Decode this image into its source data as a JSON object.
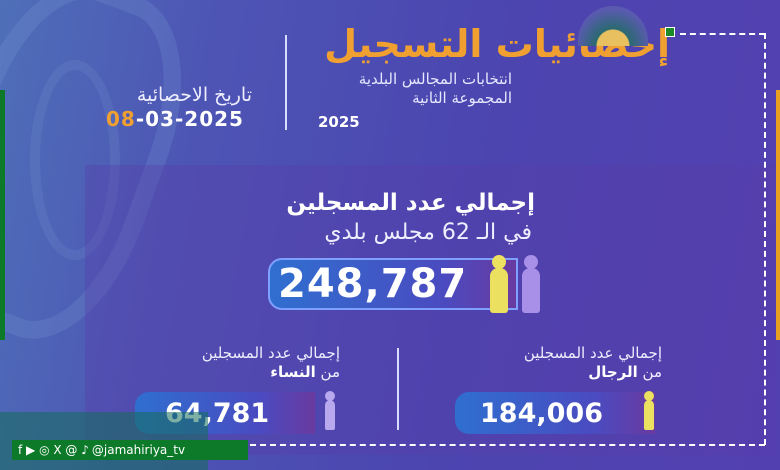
{
  "header": {
    "title": "إحصائيات التسجيل",
    "subtitle_line1": "انتخابات المجالس البلدية",
    "subtitle_line2": "المجموعة الثانية",
    "year": "2025"
  },
  "stats_date": {
    "label": "تاريخ الاحصائية",
    "day": "08",
    "rest": "-03-2025"
  },
  "total": {
    "line1": "إجمالي عدد المسجلين",
    "line2": "في الـ 62 مجلس بلدي",
    "value": "248,787"
  },
  "women": {
    "line1": "إجمالي عدد المسجلين",
    "prefix": "من",
    "group": "النساء",
    "value": "64,781"
  },
  "men": {
    "line1": "إجمالي عدد المسجلين",
    "prefix": "من",
    "group": "الرجال",
    "value": "184,006"
  },
  "social": {
    "icons": [
      "facebook-icon",
      "youtube-icon",
      "instagram-icon",
      "x-icon",
      "threads-icon",
      "tiktok-icon"
    ],
    "glyphs": "f ▶ ◎ X @ ♪",
    "handle": "@jamahiriya_tv"
  },
  "colors": {
    "accent": "#f0a030",
    "men": "#ece060",
    "women": "#a890e8",
    "brand_green": "#0d7a2a"
  }
}
